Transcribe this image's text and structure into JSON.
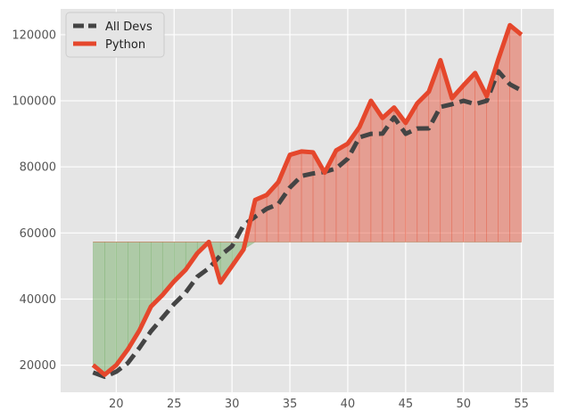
{
  "chart_data": {
    "type": "line",
    "title": "",
    "xlabel": "",
    "ylabel": "",
    "xlim": [
      15.2,
      57.8
    ],
    "ylim": [
      11800,
      127800
    ],
    "xticks": [
      20,
      25,
      30,
      35,
      40,
      45,
      50,
      55
    ],
    "yticks": [
      20000,
      40000,
      60000,
      80000,
      100000,
      120000
    ],
    "grid": true,
    "legend": {
      "position": "top-left",
      "entries": [
        "All Devs",
        "Python"
      ]
    },
    "x": [
      18,
      19,
      20,
      21,
      22,
      23,
      24,
      25,
      26,
      27,
      28,
      29,
      30,
      31,
      32,
      33,
      34,
      35,
      36,
      37,
      38,
      39,
      40,
      41,
      42,
      43,
      44,
      45,
      46,
      47,
      48,
      49,
      50,
      51,
      52,
      53,
      54,
      55
    ],
    "series": [
      {
        "name": "All Devs",
        "color": "#444444",
        "style": "dashed",
        "values": [
          17784,
          16500,
          18012,
          20628,
          25206,
          30252,
          34368,
          38496,
          42000,
          46752,
          49320,
          53200,
          56000,
          62316,
          64928,
          67317,
          68748,
          73752,
          77232,
          78000,
          78508,
          79536,
          82488,
          88935,
          90000,
          90056,
          95000,
          90000,
          91633,
          91660,
          98150,
          98964,
          100000,
          98988,
          100000,
          108923,
          105000,
          103117
        ]
      },
      {
        "name": "Python",
        "color": "#e5472c",
        "style": "solid",
        "values": [
          20046,
          17100,
          20000,
          24744,
          30500,
          37732,
          41247,
          45372,
          48876,
          53850,
          57287,
          45000,
          50000,
          55000,
          70000,
          71496,
          75370,
          83640,
          84666,
          84392,
          78254,
          85000,
          87038,
          91991,
          100000,
          94796,
          97962,
          93302,
          99240,
          102736,
          112285,
          100771,
          104708,
          108423,
          101407,
          112542,
          122870,
          120000
        ]
      }
    ],
    "fill_between": {
      "baseline": 57287,
      "above_color": "#e5472c",
      "below_color": "#77b06a"
    }
  }
}
